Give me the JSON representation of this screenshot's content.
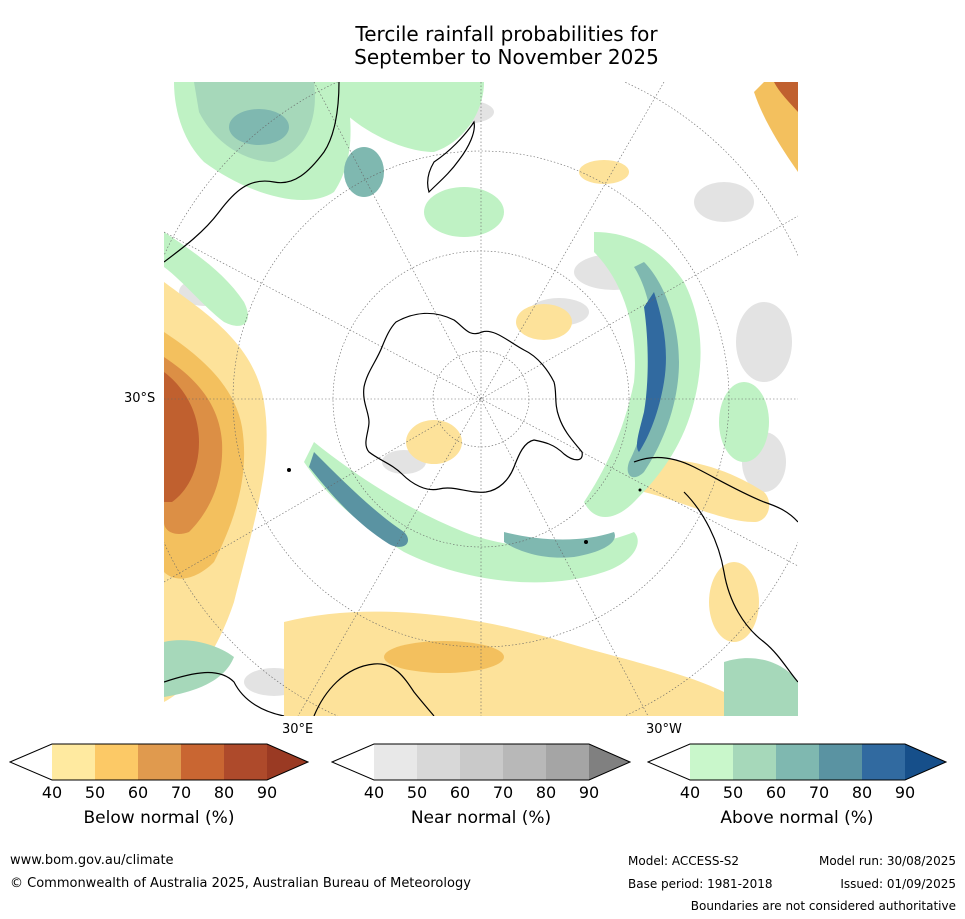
{
  "title_line1": "Tercile rainfall probabilities for",
  "title_line2": "September to November 2025",
  "map_labels": {
    "lat_30s": "30°S",
    "lon_30e": "30°E",
    "lon_30w": "30°W"
  },
  "colorbars": [
    {
      "label": "Below normal (%)",
      "ticks": [
        "40",
        "50",
        "60",
        "70",
        "80",
        "90"
      ],
      "colors": [
        "#ffffff",
        "#ffeaa0",
        "#fcc966",
        "#e09a4e",
        "#c96632",
        "#ae4a2b",
        "#9a3a23"
      ]
    },
    {
      "label": "Near normal (%)",
      "ticks": [
        "40",
        "50",
        "60",
        "70",
        "80",
        "90"
      ],
      "colors": [
        "#ffffff",
        "#e8e8e8",
        "#d8d8d8",
        "#c9c9c9",
        "#b8b8b8",
        "#a5a5a5",
        "#808080"
      ]
    },
    {
      "label": "Above normal (%)",
      "ticks": [
        "40",
        "50",
        "60",
        "70",
        "80",
        "90"
      ],
      "colors": [
        "#ffffff",
        "#c9f7cb",
        "#a6d8ba",
        "#7fb8b0",
        "#5a93a2",
        "#316aa0",
        "#164f8a"
      ]
    }
  ],
  "footer": {
    "website": "www.bom.gov.au/climate",
    "copyright": "© Commonwealth of Australia 2025, Australian Bureau of Meteorology",
    "model": "Model: ACCESS-S2",
    "model_run": "Model run: 30/08/2025",
    "base_period": "Base period: 1981-2018",
    "issued": "Issued: 01/09/2025",
    "disclaimer": "Boundaries are not considered authoritative"
  }
}
